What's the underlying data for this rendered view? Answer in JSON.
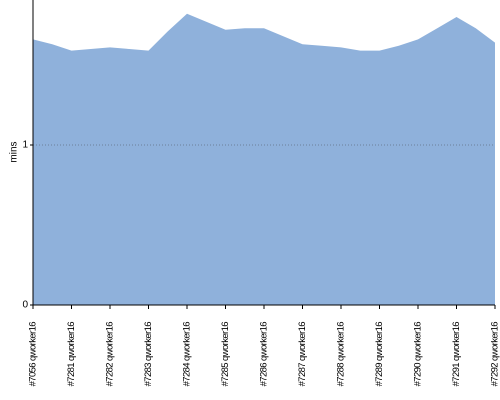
{
  "chart_data": {
    "type": "area",
    "y_label": "mins",
    "categories": [
      "#7056 qworker16",
      null,
      "#7281 qworker16",
      null,
      "#7282 qworker16",
      null,
      "#7283 qworker16",
      null,
      "#7284 qworker16",
      null,
      "#7285 qworker16",
      null,
      "#7286 qworker16",
      null,
      "#7287 qworker16",
      null,
      "#7288 qworker16",
      null,
      "#7289 qworker16",
      null,
      "#7290 qworker16",
      null,
      "#7291 qworker16",
      null,
      "#7292 qworker16"
    ],
    "values": [
      1.66,
      1.63,
      1.59,
      1.6,
      1.61,
      1.6,
      1.59,
      1.71,
      1.82,
      1.77,
      1.72,
      1.73,
      1.73,
      1.68,
      1.63,
      1.62,
      1.61,
      1.59,
      1.59,
      1.62,
      1.66,
      1.73,
      1.8,
      1.73,
      1.64
    ],
    "color": "#8fb1db",
    "ylim": [
      0,
      1.9
    ],
    "yticks": [
      0,
      1
    ],
    "grid": true
  }
}
